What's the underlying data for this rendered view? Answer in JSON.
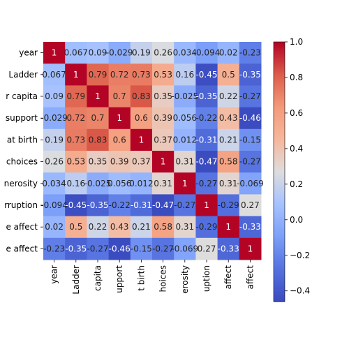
{
  "chart_data": {
    "type": "heatmap",
    "title": "",
    "xlabel": "",
    "ylabel": "",
    "row_labels": [
      "year",
      " Ladder",
      "r capita",
      "support",
      "at birth",
      "choices",
      "nerosity",
      "rruption",
      "e affect",
      "e affect"
    ],
    "col_labels": [
      "year",
      "Ladder",
      "capita",
      "upport",
      "t birth",
      "hoices",
      "erosity",
      "uption",
      "affect",
      "affect"
    ],
    "values": [
      [
        1,
        0.067,
        0.09,
        -0.029,
        0.19,
        0.26,
        0.034,
        -0.094,
        0.02,
        -0.23
      ],
      [
        0.067,
        1,
        0.79,
        0.72,
        0.73,
        0.53,
        0.16,
        -0.45,
        0.5,
        -0.35
      ],
      [
        0.09,
        0.79,
        1,
        0.7,
        0.83,
        0.35,
        -0.025,
        -0.35,
        0.22,
        -0.27
      ],
      [
        -0.029,
        0.72,
        0.7,
        1,
        0.6,
        0.39,
        0.056,
        -0.22,
        0.43,
        -0.46
      ],
      [
        0.19,
        0.73,
        0.83,
        0.6,
        1,
        0.37,
        0.012,
        -0.31,
        0.21,
        -0.15
      ],
      [
        0.26,
        0.53,
        0.35,
        0.39,
        0.37,
        1,
        0.31,
        -0.47,
        0.58,
        -0.27
      ],
      [
        0.034,
        0.16,
        -0.025,
        0.056,
        0.012,
        0.31,
        1,
        -0.27,
        0.31,
        -0.069
      ],
      [
        -0.094,
        -0.45,
        -0.35,
        -0.22,
        -0.31,
        -0.47,
        -0.27,
        1,
        -0.29,
        0.27
      ],
      [
        0.02,
        0.5,
        0.22,
        0.43,
        0.21,
        0.58,
        0.31,
        -0.29,
        1,
        -0.33
      ],
      [
        -0.23,
        -0.35,
        -0.27,
        -0.46,
        -0.15,
        -0.27,
        -0.069,
        0.27,
        -0.33,
        1
      ]
    ],
    "cell_text": [
      [
        "1",
        "0.067",
        "0.09",
        "-0.029",
        "0.19",
        "0.26",
        "0.034",
        "-0.094",
        "0.02",
        "-0.23"
      ],
      [
        "0.067",
        "1",
        "0.79",
        "0.72",
        "0.73",
        "0.53",
        "0.16",
        "-0.45",
        "0.5",
        "-0.35"
      ],
      [
        "0.09",
        "0.79",
        "1",
        "0.7",
        "0.83",
        "0.35",
        "-0.025",
        "-0.35",
        "0.22",
        "-0.27"
      ],
      [
        "-0.029",
        "0.72",
        "0.7",
        "1",
        "0.6",
        "0.39",
        "0.056",
        "-0.22",
        "0.43",
        "-0.46"
      ],
      [
        "0.19",
        "0.73",
        "0.83",
        "0.6",
        "1",
        "0.37",
        "0.012",
        "-0.31",
        "0.21",
        "-0.15"
      ],
      [
        "0.26",
        "0.53",
        "0.35",
        "0.39",
        "0.37",
        "1",
        "0.31",
        "-0.47",
        "0.58",
        "-0.27"
      ],
      [
        "0.034",
        "0.16",
        "-0.025",
        "0.056",
        "0.012",
        "0.31",
        "1",
        "-0.27",
        "0.31",
        "-0.069"
      ],
      [
        "-0.094",
        "-0.45",
        "-0.35",
        "-0.22",
        "-0.31",
        "-0.47",
        "-0.27",
        "1",
        "-0.29",
        "0.27"
      ],
      [
        "0.02",
        "0.5",
        "0.22",
        "0.43",
        "0.21",
        "0.58",
        "0.31",
        "-0.29",
        "1",
        "-0.33"
      ],
      [
        "-0.23",
        "-0.35",
        "-0.27",
        "-0.46",
        "-0.15",
        "-0.27",
        "-0.069",
        "0.27",
        "-0.33",
        "1"
      ]
    ],
    "colormap": "coolwarm",
    "vmin": -0.46,
    "vmax": 1,
    "colorbar_ticks": [
      {
        "value": 1.0,
        "label": "1.0"
      },
      {
        "value": 0.8,
        "label": "0.8"
      },
      {
        "value": 0.6,
        "label": "0.6"
      },
      {
        "value": 0.4,
        "label": "0.4"
      },
      {
        "value": 0.2,
        "label": "0.2"
      },
      {
        "value": 0.0,
        "label": "0.0"
      },
      {
        "value": -0.2,
        "label": "−0.2"
      },
      {
        "value": -0.4,
        "label": "−0.4"
      }
    ],
    "grid": false,
    "legend": "colorbar-right"
  }
}
